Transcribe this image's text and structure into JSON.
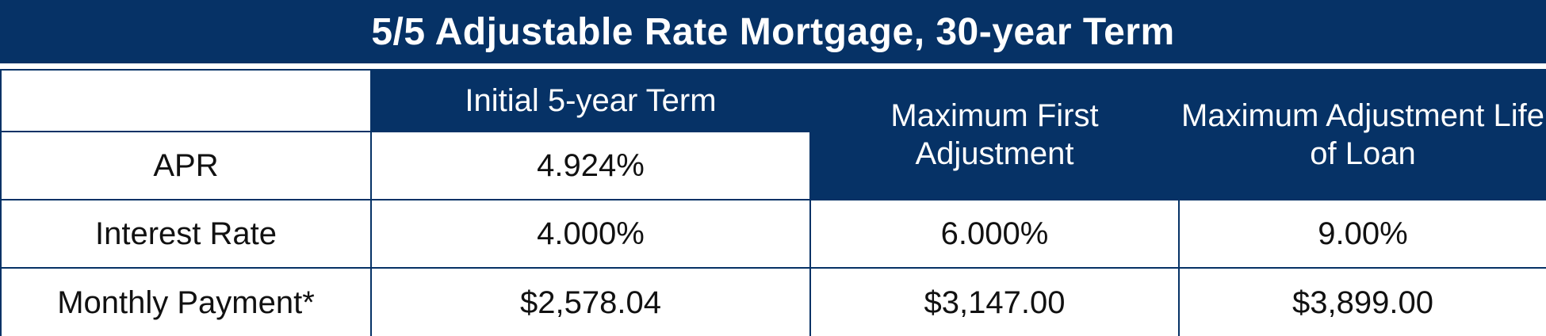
{
  "title": "5/5 Adjustable Rate Mortgage, 30-year Term",
  "headers": {
    "initial_term": "Initial 5-year Term",
    "max_first": "Maximum First Adjustment",
    "max_life": "Maximum Adjustment Life of Loan"
  },
  "rows": [
    {
      "label": "APR",
      "initial": "4.924%"
    },
    {
      "label": "Interest Rate",
      "initial": "4.000%",
      "max_first": "6.000%",
      "max_life": "9.00%"
    },
    {
      "label": "Monthly Payment*",
      "initial": "$2,578.04",
      "max_first": "$3,147.00",
      "max_life": "$3,899.00"
    }
  ],
  "colors": {
    "navy": "#063266",
    "white": "#ffffff",
    "text": "#111111"
  }
}
